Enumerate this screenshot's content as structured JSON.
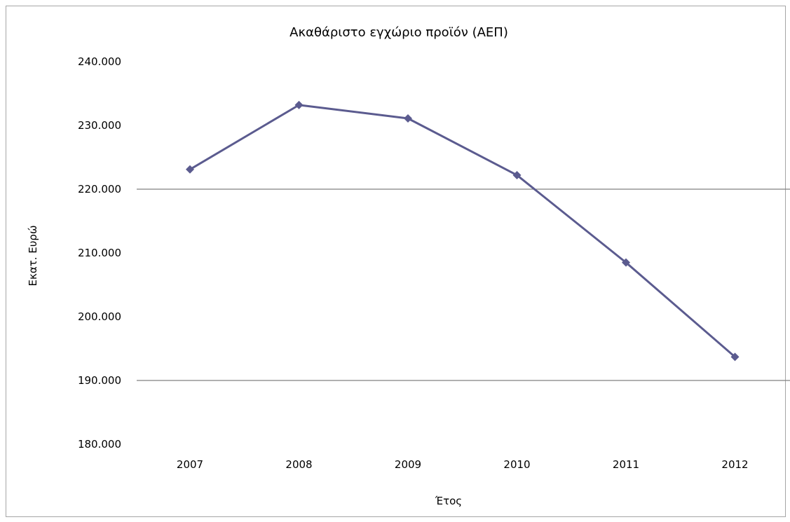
{
  "chart_data": {
    "type": "line",
    "title": "Ακαθάριστο εγχώριο προϊόν (ΑΕΠ)",
    "xlabel": "Έτος",
    "ylabel": "Εκατ. Ευρώ",
    "categories": [
      "2007",
      "2008",
      "2009",
      "2010",
      "2011",
      "2012"
    ],
    "series": [
      {
        "values": [
          223100,
          233200,
          231100,
          222200,
          208500,
          193700
        ]
      }
    ],
    "ylim": [
      180000,
      240000
    ],
    "yticks": [
      180000,
      190000,
      200000,
      210000,
      220000,
      230000,
      240000
    ],
    "ytick_labels": [
      "180.000",
      "190.000",
      "200.000",
      "210.000",
      "220.000",
      "230.000",
      "240.000"
    ],
    "gridlines_at": [
      190000,
      220000
    ],
    "legend": "none",
    "colors": {
      "line": "#5b5b8f",
      "marker": "#5b5b8f",
      "gridline": "#808080",
      "frame": "#a6a6a6"
    }
  }
}
